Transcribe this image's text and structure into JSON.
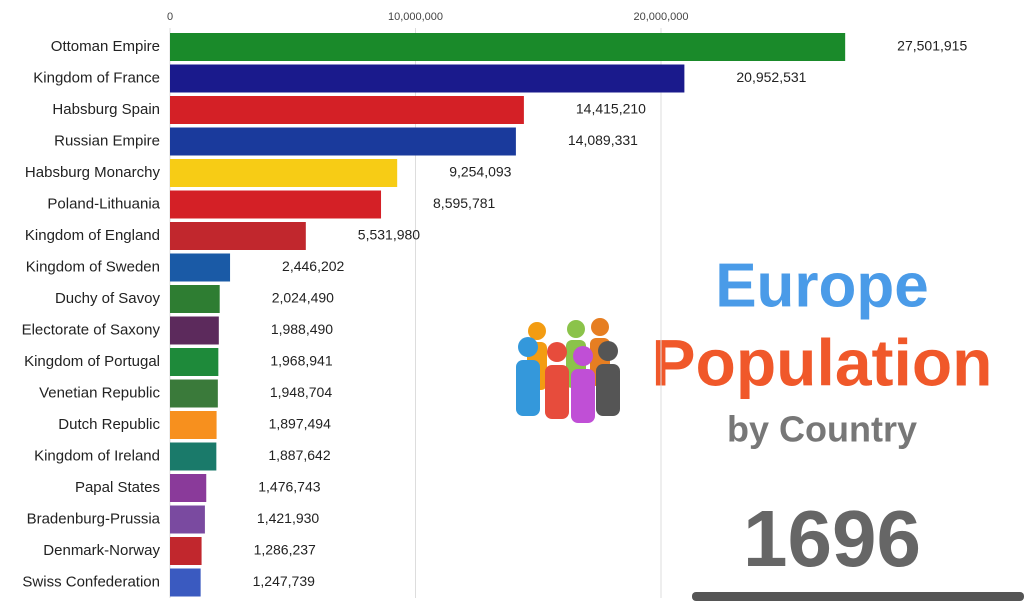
{
  "chart_data": {
    "type": "bar",
    "orientation": "horizontal",
    "title_lines": [
      "Europe",
      "Population",
      "by Country"
    ],
    "year": "1696",
    "categories": [
      "Ottoman Empire",
      "Kingdom of France",
      "Habsburg Spain",
      "Russian Empire",
      "Habsburg Monarchy",
      "Poland-Lithuania",
      "Kingdom of England",
      "Kingdom of Sweden",
      "Duchy of Savoy",
      "Electorate of Saxony",
      "Kingdom of Portugal",
      "Venetian Republic",
      "Dutch Republic",
      "Kingdom of Ireland",
      "Papal States",
      "Bradenburg-Prussia",
      "Denmark-Norway",
      "Swiss Confederation"
    ],
    "values": [
      27501915,
      20952531,
      14415210,
      14089331,
      9254093,
      8595781,
      5531980,
      2446202,
      2024490,
      1988490,
      1968941,
      1948704,
      1897494,
      1887642,
      1476743,
      1421930,
      1286237,
      1247739
    ],
    "value_labels": [
      "27,501,915",
      "20,952,531",
      "14,415,210",
      "14,089,331",
      "9,254,093",
      "8,595,781",
      "5,531,980",
      "2,446,202",
      "2,024,490",
      "1,988,490",
      "1,968,941",
      "1,948,704",
      "1,897,494",
      "1,887,642",
      "1,476,743",
      "1,421,930",
      "1,286,237",
      "1,247,739"
    ],
    "colors": [
      "#1a8a2a",
      "#1a1a8c",
      "#d42026",
      "#1a3a9c",
      "#f7cc15",
      "#d42026",
      "#c1272d",
      "#1a5aa6",
      "#2e7d32",
      "#5c2a5c",
      "#1e8a3a",
      "#3a7a3a",
      "#f7901e",
      "#1a7a6a",
      "#8a3a9a",
      "#7a4aa0",
      "#c1272d",
      "#3a5ac0"
    ],
    "xlim": [
      0,
      30000000
    ],
    "xticks": [
      0,
      {
        "value": 10000000,
        "label": "10,000,000"
      },
      {
        "value": 20000000,
        "label": "20,000,000"
      }
    ],
    "grid": true
  }
}
